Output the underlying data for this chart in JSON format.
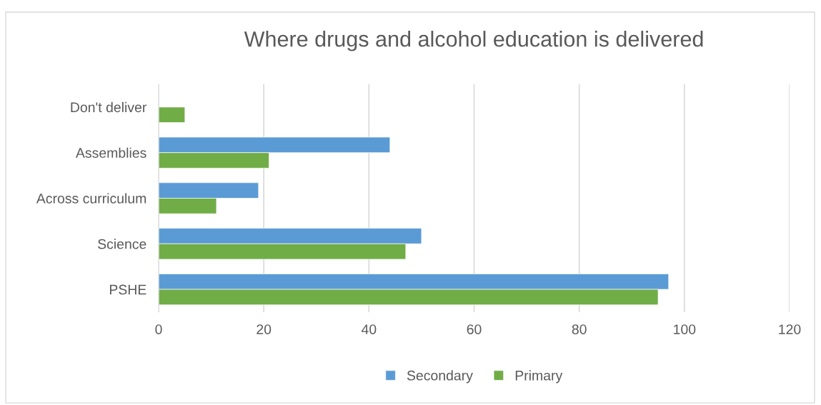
{
  "chart_data": {
    "type": "bar",
    "orientation": "horizontal",
    "title": "Where drugs and alcohol education is delivered",
    "categories": [
      "Don't deliver",
      "Assemblies",
      "Across curriculum",
      "Science",
      "PSHE"
    ],
    "series": [
      {
        "name": "Secondary",
        "color": "#5b9bd5",
        "values": [
          null,
          44,
          19,
          50,
          97
        ]
      },
      {
        "name": "Primary",
        "color": "#70ad47",
        "values": [
          5,
          21,
          11,
          47,
          95
        ]
      }
    ],
    "xlim": [
      0,
      120
    ],
    "xticks": [
      0,
      20,
      40,
      60,
      80,
      100,
      120
    ],
    "grid": "x",
    "legend": "bottom"
  }
}
